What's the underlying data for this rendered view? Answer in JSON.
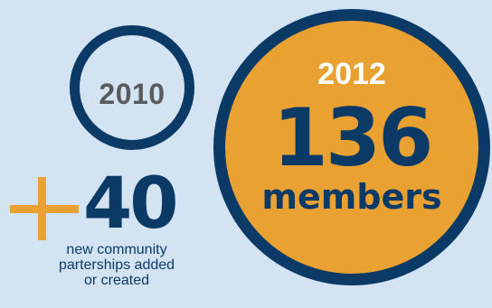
{
  "before": {
    "year": "2010"
  },
  "after": {
    "year": "2012",
    "count": "136",
    "unit": "members"
  },
  "growth": {
    "value": "40",
    "description_lines": [
      "new community",
      "parterships added",
      "or created"
    ]
  },
  "colors": {
    "background": "#d3e3f2",
    "navy": "#0b3a67",
    "orange": "#e9a232",
    "gray": "#595b5e",
    "white": "#ffffff"
  },
  "icons": {
    "plus": "plus-icon"
  }
}
